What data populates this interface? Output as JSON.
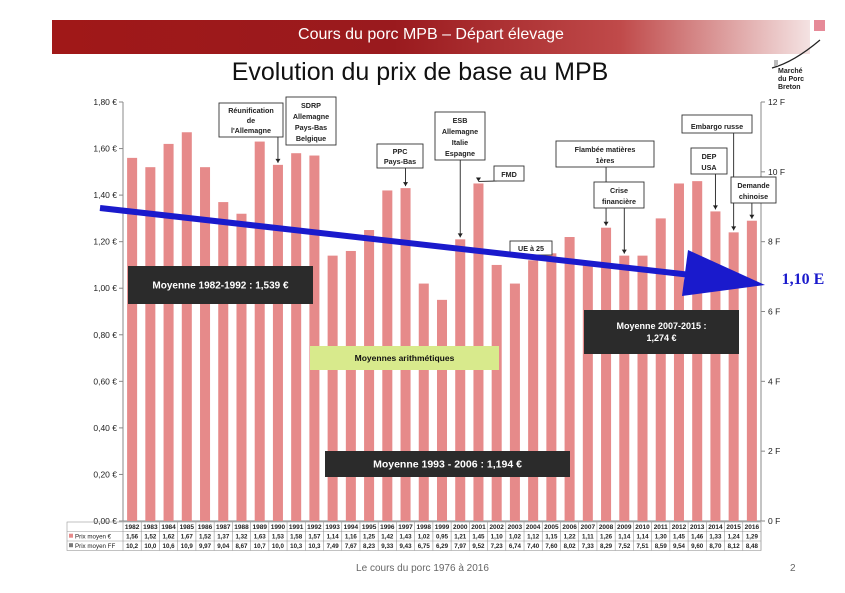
{
  "header": {
    "banner": "Cours du porc MPB – Départ élevage",
    "title": "Evolution du prix de base au MPB",
    "logo_lines": [
      "Marché",
      "du Porc",
      "Breton"
    ]
  },
  "footer": {
    "text": "Le cours du porc 1976 à 2016",
    "page": "2"
  },
  "colors": {
    "bar": "#e68a8a",
    "banner": "#a01818",
    "arrow": "#1a1acc",
    "box_dark": "#2b2b2b",
    "box_green": "#d8ea8c"
  },
  "chart_data": {
    "type": "bar",
    "categories": [
      "1982",
      "1983",
      "1984",
      "1985",
      "1986",
      "1987",
      "1988",
      "1989",
      "1990",
      "1991",
      "1992",
      "1993",
      "1994",
      "1995",
      "1996",
      "1997",
      "1998",
      "1999",
      "2000",
      "2001",
      "2002",
      "2003",
      "2004",
      "2005",
      "2006",
      "2007",
      "2008",
      "2009",
      "2010",
      "2011",
      "2012",
      "2013",
      "2014",
      "2015",
      "2016"
    ],
    "series": [
      {
        "name": "Prix moyen €",
        "values": [
          1.56,
          1.52,
          1.62,
          1.67,
          1.52,
          1.37,
          1.32,
          1.63,
          1.53,
          1.58,
          1.57,
          1.14,
          1.16,
          1.25,
          1.42,
          1.43,
          1.02,
          0.95,
          1.21,
          1.45,
          1.1,
          1.02,
          1.12,
          1.15,
          1.22,
          1.11,
          1.26,
          1.14,
          1.14,
          1.3,
          1.45,
          1.46,
          1.33,
          1.24,
          1.29
        ]
      }
    ],
    "table_rows": [
      {
        "label": "Prix moyen €",
        "values": [
          "1,56",
          "1,52",
          "1,62",
          "1,67",
          "1,52",
          "1,37",
          "1,32",
          "1,63",
          "1,53",
          "1,58",
          "1,57",
          "1,14",
          "1,16",
          "1,25",
          "1,42",
          "1,43",
          "1,02",
          "0,95",
          "1,21",
          "1,45",
          "1,10",
          "1,02",
          "1,12",
          "1,15",
          "1,22",
          "1,11",
          "1,26",
          "1,14",
          "1,14",
          "1,30",
          "1,45",
          "1,46",
          "1,33",
          "1,24",
          "1,29"
        ]
      },
      {
        "label": "Prix moyen FF",
        "values": [
          "10,2",
          "10,0",
          "10,6",
          "10,9",
          "9,97",
          "9,04",
          "8,67",
          "10,7",
          "10,0",
          "10,3",
          "10,3",
          "7,49",
          "7,67",
          "8,23",
          "9,33",
          "9,43",
          "6,75",
          "6,29",
          "7,97",
          "9,52",
          "7,23",
          "6,74",
          "7,40",
          "7,60",
          "8,02",
          "7,33",
          "8,29",
          "7,52",
          "7,51",
          "8,59",
          "9,54",
          "9,60",
          "8,70",
          "8,12",
          "8,48"
        ]
      }
    ],
    "ylim": [
      0,
      1.8
    ],
    "y_ticks": [
      "0,00 €",
      "0,20 €",
      "0,40 €",
      "0,60 €",
      "0,80 €",
      "1,00 €",
      "1,20 €",
      "1,40 €",
      "1,60 €",
      "1,80 €"
    ],
    "y2_ticks": [
      "0 F",
      "2 F",
      "4 F",
      "6 F",
      "8 F",
      "10 F",
      "12 F"
    ],
    "grid": false,
    "annotations": [
      {
        "year": "1990",
        "lines": [
          "Réunification",
          "de",
          "l'Allemagne"
        ]
      },
      {
        "year": "1992",
        "lines": [
          "SDRP",
          "Allemagne",
          "Pays-Bas",
          "Belgique"
        ]
      },
      {
        "year": "1997",
        "lines": [
          "PPC",
          "Pays-Bas"
        ]
      },
      {
        "year": "2000",
        "lines": [
          "ESB",
          "Allemagne",
          "Italie",
          "Espagne"
        ]
      },
      {
        "year": "2001",
        "lines": [
          "FMD"
        ]
      },
      {
        "year": "2004",
        "lines": [
          "UE à 25"
        ]
      },
      {
        "year": "2008",
        "lines": [
          "Flambée matières",
          "1ères"
        ]
      },
      {
        "year": "2009",
        "lines": [
          "Crise",
          "financière"
        ]
      },
      {
        "year": "2014",
        "lines": [
          "DEP",
          "USA"
        ]
      },
      {
        "year": "2015",
        "lines": [
          "Embargo russe"
        ]
      },
      {
        "year": "2016",
        "lines": [
          "Demande",
          "chinoise"
        ]
      }
    ],
    "averages": [
      {
        "text": "Moyenne 1982-1992 : 1,539 €"
      },
      {
        "lines": [
          "Moyenne 2007-2015 :",
          "1,274 €"
        ]
      },
      {
        "text": "Moyenne 1993 - 2006 : 1,194 €"
      }
    ],
    "method_note": "Moyennes arithmétiques",
    "trend_label": "1,10 E"
  }
}
